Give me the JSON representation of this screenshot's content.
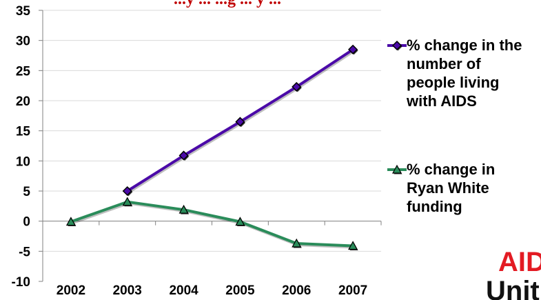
{
  "chart_data": {
    "type": "line",
    "title": "...y ... ...g ... y ...",
    "categories": [
      "2002",
      "2003",
      "2004",
      "2005",
      "2006",
      "2007"
    ],
    "ylim": [
      -10,
      35
    ],
    "yticks": [
      35,
      30,
      25,
      20,
      15,
      10,
      5,
      0,
      -5,
      -10
    ],
    "grid": true,
    "legend_position": "right",
    "series": [
      {
        "name": "% change in the number of people living with AIDS",
        "legend_lines": [
          "% change in the",
          "number of",
          "people living",
          "with AIDS"
        ],
        "color": "#4b0aa8",
        "marker": "diamond",
        "values": [
          null,
          5,
          10.9,
          16.5,
          22.3,
          28.5
        ]
      },
      {
        "name": "% change in Ryan White funding",
        "legend_lines": [
          "% change in",
          "Ryan White",
          "funding"
        ],
        "color": "#2a8c5a",
        "marker": "triangle",
        "values": [
          -0.1,
          3.2,
          1.9,
          -0.1,
          -3.7,
          -4.1
        ]
      }
    ]
  },
  "logo": {
    "line1": "AID",
    "line2": "Unit"
  }
}
